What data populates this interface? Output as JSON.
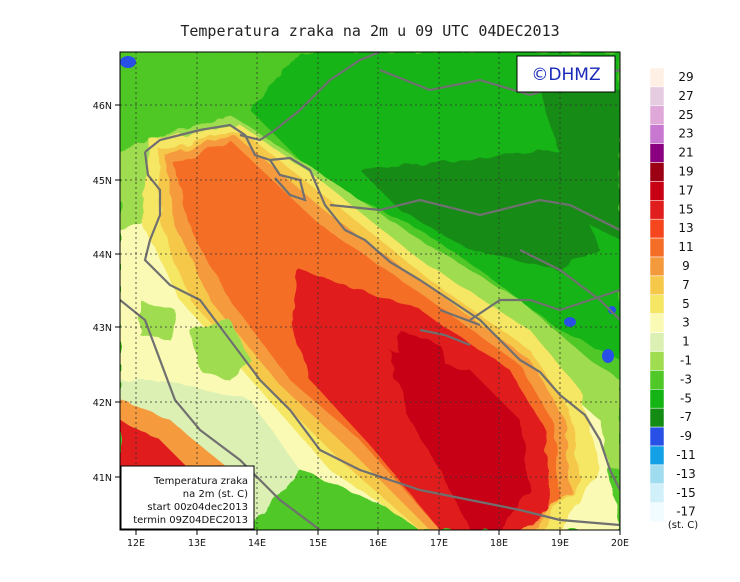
{
  "title": "Temperatura zraka na 2m u 09 UTC 04DEC2013",
  "copyright": "©DHMZ",
  "info_box": {
    "line1": "Temperatura zraka",
    "line2": "na 2m (st. C)",
    "line3": "start 00z04dec2013",
    "line4": "termin 09Z04DEC2013"
  },
  "lat_labels": [
    "46N",
    "45N",
    "44N",
    "43N",
    "42N",
    "41N"
  ],
  "lon_labels": [
    "12E",
    "13E",
    "14E",
    "15E",
    "16E",
    "17E",
    "18E",
    "19E",
    "20E"
  ],
  "legend": {
    "unit": "(st. C)",
    "levels": [
      {
        "label": "29",
        "color": "#fff0e6"
      },
      {
        "label": "27",
        "color": "#e6cce0"
      },
      {
        "label": "25",
        "color": "#e0a8d8"
      },
      {
        "label": "23",
        "color": "#c878d0"
      },
      {
        "label": "21",
        "color": "#8a0080"
      },
      {
        "label": "19",
        "color": "#9c0014"
      },
      {
        "label": "17",
        "color": "#c80014"
      },
      {
        "label": "15",
        "color": "#e01e1e"
      },
      {
        "label": "13",
        "color": "#f5461e"
      },
      {
        "label": "11",
        "color": "#f56e28"
      },
      {
        "label": "9",
        "color": "#f59a3c"
      },
      {
        "label": "7",
        "color": "#f5c84a"
      },
      {
        "label": "5",
        "color": "#f5e664"
      },
      {
        "label": "3",
        "color": "#fafab4"
      },
      {
        "label": "1",
        "color": "#dcf0b4"
      },
      {
        "label": "-1",
        "color": "#a0dc50"
      },
      {
        "label": "-3",
        "color": "#50c828"
      },
      {
        "label": "-5",
        "color": "#14b414"
      },
      {
        "label": "-7",
        "color": "#148c14"
      },
      {
        "label": "-9",
        "color": "#2850e6"
      },
      {
        "label": "-11",
        "color": "#14a0e6"
      },
      {
        "label": "-13",
        "color": "#a0dcf0"
      },
      {
        "label": "-15",
        "color": "#d2f0fa"
      },
      {
        "label": "-17",
        "color": "#f0fcff"
      }
    ]
  }
}
